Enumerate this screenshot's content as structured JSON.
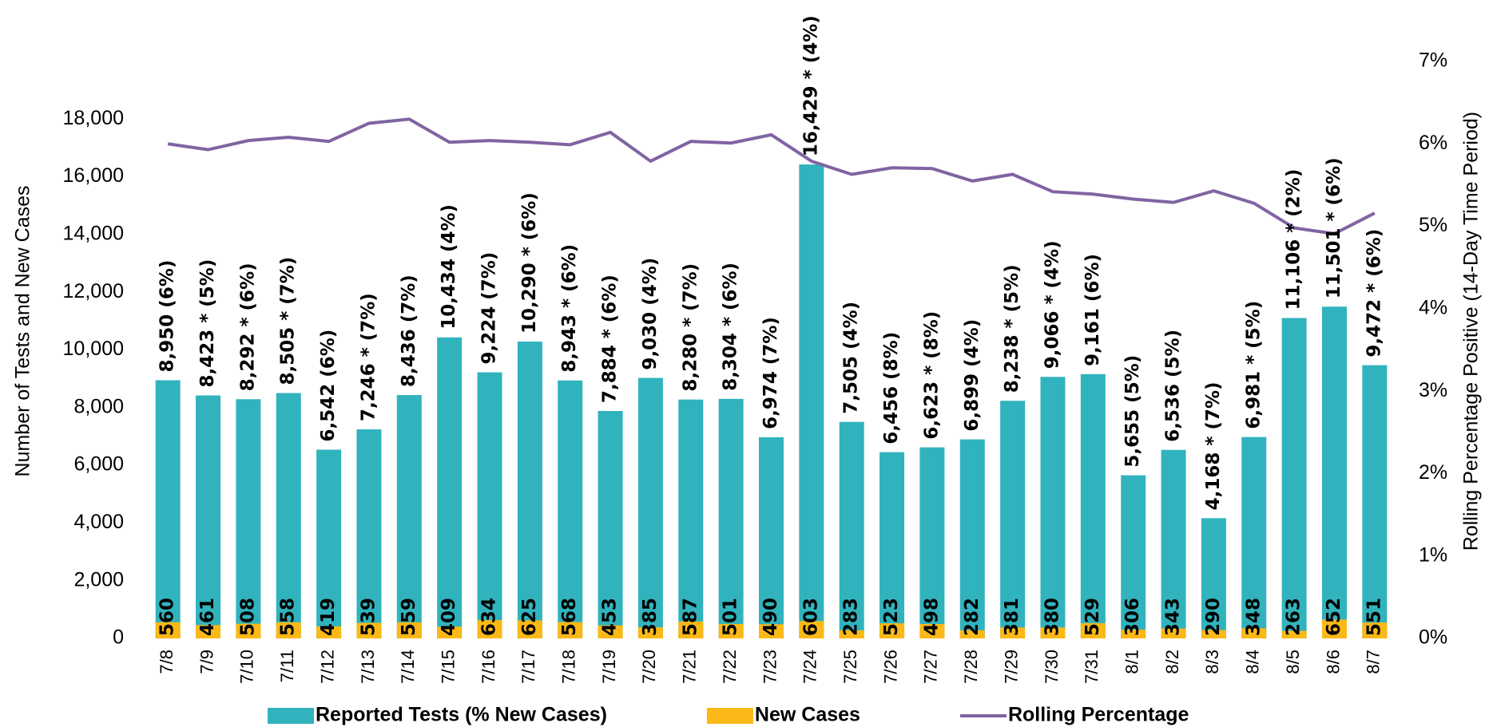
{
  "chart_data": {
    "type": "bar",
    "categories": [
      "7/8",
      "7/9",
      "7/10",
      "7/11",
      "7/12",
      "7/13",
      "7/14",
      "7/15",
      "7/16",
      "7/17",
      "7/18",
      "7/19",
      "7/20",
      "7/21",
      "7/22",
      "7/23",
      "7/24",
      "7/25",
      "7/26",
      "7/27",
      "7/28",
      "7/29",
      "7/30",
      "7/31",
      "8/1",
      "8/2",
      "8/3",
      "8/4",
      "8/5",
      "8/6",
      "8/7"
    ],
    "series": [
      {
        "name": "Reported Tests (% New Cases)",
        "color": "#31b3bd",
        "type": "bar",
        "values": [
          8950,
          8423,
          8292,
          8505,
          6542,
          7246,
          8436,
          10434,
          9224,
          10290,
          8943,
          7884,
          9030,
          8280,
          8304,
          6974,
          16429,
          7505,
          6456,
          6623,
          6899,
          8238,
          9066,
          9161,
          5655,
          6536,
          4168,
          6981,
          11106,
          11501,
          9472
        ],
        "value_labels": [
          "8,950 (6%)",
          "8,423 * (5%)",
          "8,292 * (6%)",
          "8,505 * (7%)",
          "6,542 (6%)",
          "7,246 * (7%)",
          "8,436 (7%)",
          "10,434 (4%)",
          "9,224 (7%)",
          "10,290 * (6%)",
          "8,943 * (6%)",
          "7,884 * (6%)",
          "9,030 (4%)",
          "8,280 * (7%)",
          "8,304 * (6%)",
          "6,974 (7%)",
          "16,429 * (4%)",
          "7,505 (4%)",
          "6,456 (8%)",
          "6,623 * (8%)",
          "6,899 (4%)",
          "8,238 * (5%)",
          "9,066 * (4%)",
          "9,161 (6%)",
          "5,655 (5%)",
          "6,536 (5%)",
          "4,168 * (7%)",
          "6,981 * (5%)",
          "11,106 * (2%)",
          "11,501 * (6%)",
          "9,472 * (6%)"
        ]
      },
      {
        "name": "New Cases",
        "color": "#fbb917",
        "type": "bar",
        "values": [
          560,
          461,
          508,
          558,
          419,
          539,
          559,
          409,
          634,
          625,
          568,
          453,
          385,
          587,
          501,
          490,
          603,
          283,
          523,
          498,
          282,
          381,
          380,
          529,
          306,
          343,
          290,
          348,
          263,
          652,
          551
        ]
      },
      {
        "name": "Rolling Percentage",
        "color": "#8064a2",
        "type": "line",
        "axis": "y2",
        "values": [
          6.0,
          5.93,
          6.04,
          6.08,
          6.03,
          6.25,
          6.3,
          6.02,
          6.04,
          6.02,
          5.99,
          6.14,
          5.79,
          6.03,
          6.01,
          6.11,
          5.79,
          5.63,
          5.71,
          5.7,
          5.55,
          5.63,
          5.42,
          5.39,
          5.33,
          5.29,
          5.43,
          5.28,
          4.98,
          4.91,
          5.16
        ]
      }
    ],
    "y_label": "Number of Tests and New Cases",
    "y2_label": "Rolling Percentage Positive (14-Day Time Period)",
    "ylim": [
      0,
      20000
    ],
    "yticks": [
      0,
      {
        "value": 2000,
        "label": "2,000"
      },
      {
        "value": 4000,
        "label": "4,000"
      },
      {
        "value": 6000,
        "label": "6,000"
      },
      {
        "value": 8000,
        "label": "8,000"
      },
      {
        "value": 10000,
        "label": "10,000"
      },
      {
        "value": 12000,
        "label": "12,000"
      },
      {
        "value": 14000,
        "label": "14,000"
      },
      {
        "value": 16000,
        "label": "16,000"
      },
      {
        "value": 18000,
        "label": "18,000"
      }
    ],
    "y2lim": [
      0,
      7
    ],
    "y2ticks": [
      {
        "value": 0,
        "label": "0%"
      },
      {
        "value": 1,
        "label": "1%"
      },
      {
        "value": 2,
        "label": "2%"
      },
      {
        "value": 3,
        "label": "3%"
      },
      {
        "value": 4,
        "label": "4%"
      },
      {
        "value": 5,
        "label": "5%"
      },
      {
        "value": 6,
        "label": "6%"
      },
      {
        "value": 7,
        "label": "7%"
      }
    ],
    "legend": "bottom"
  }
}
